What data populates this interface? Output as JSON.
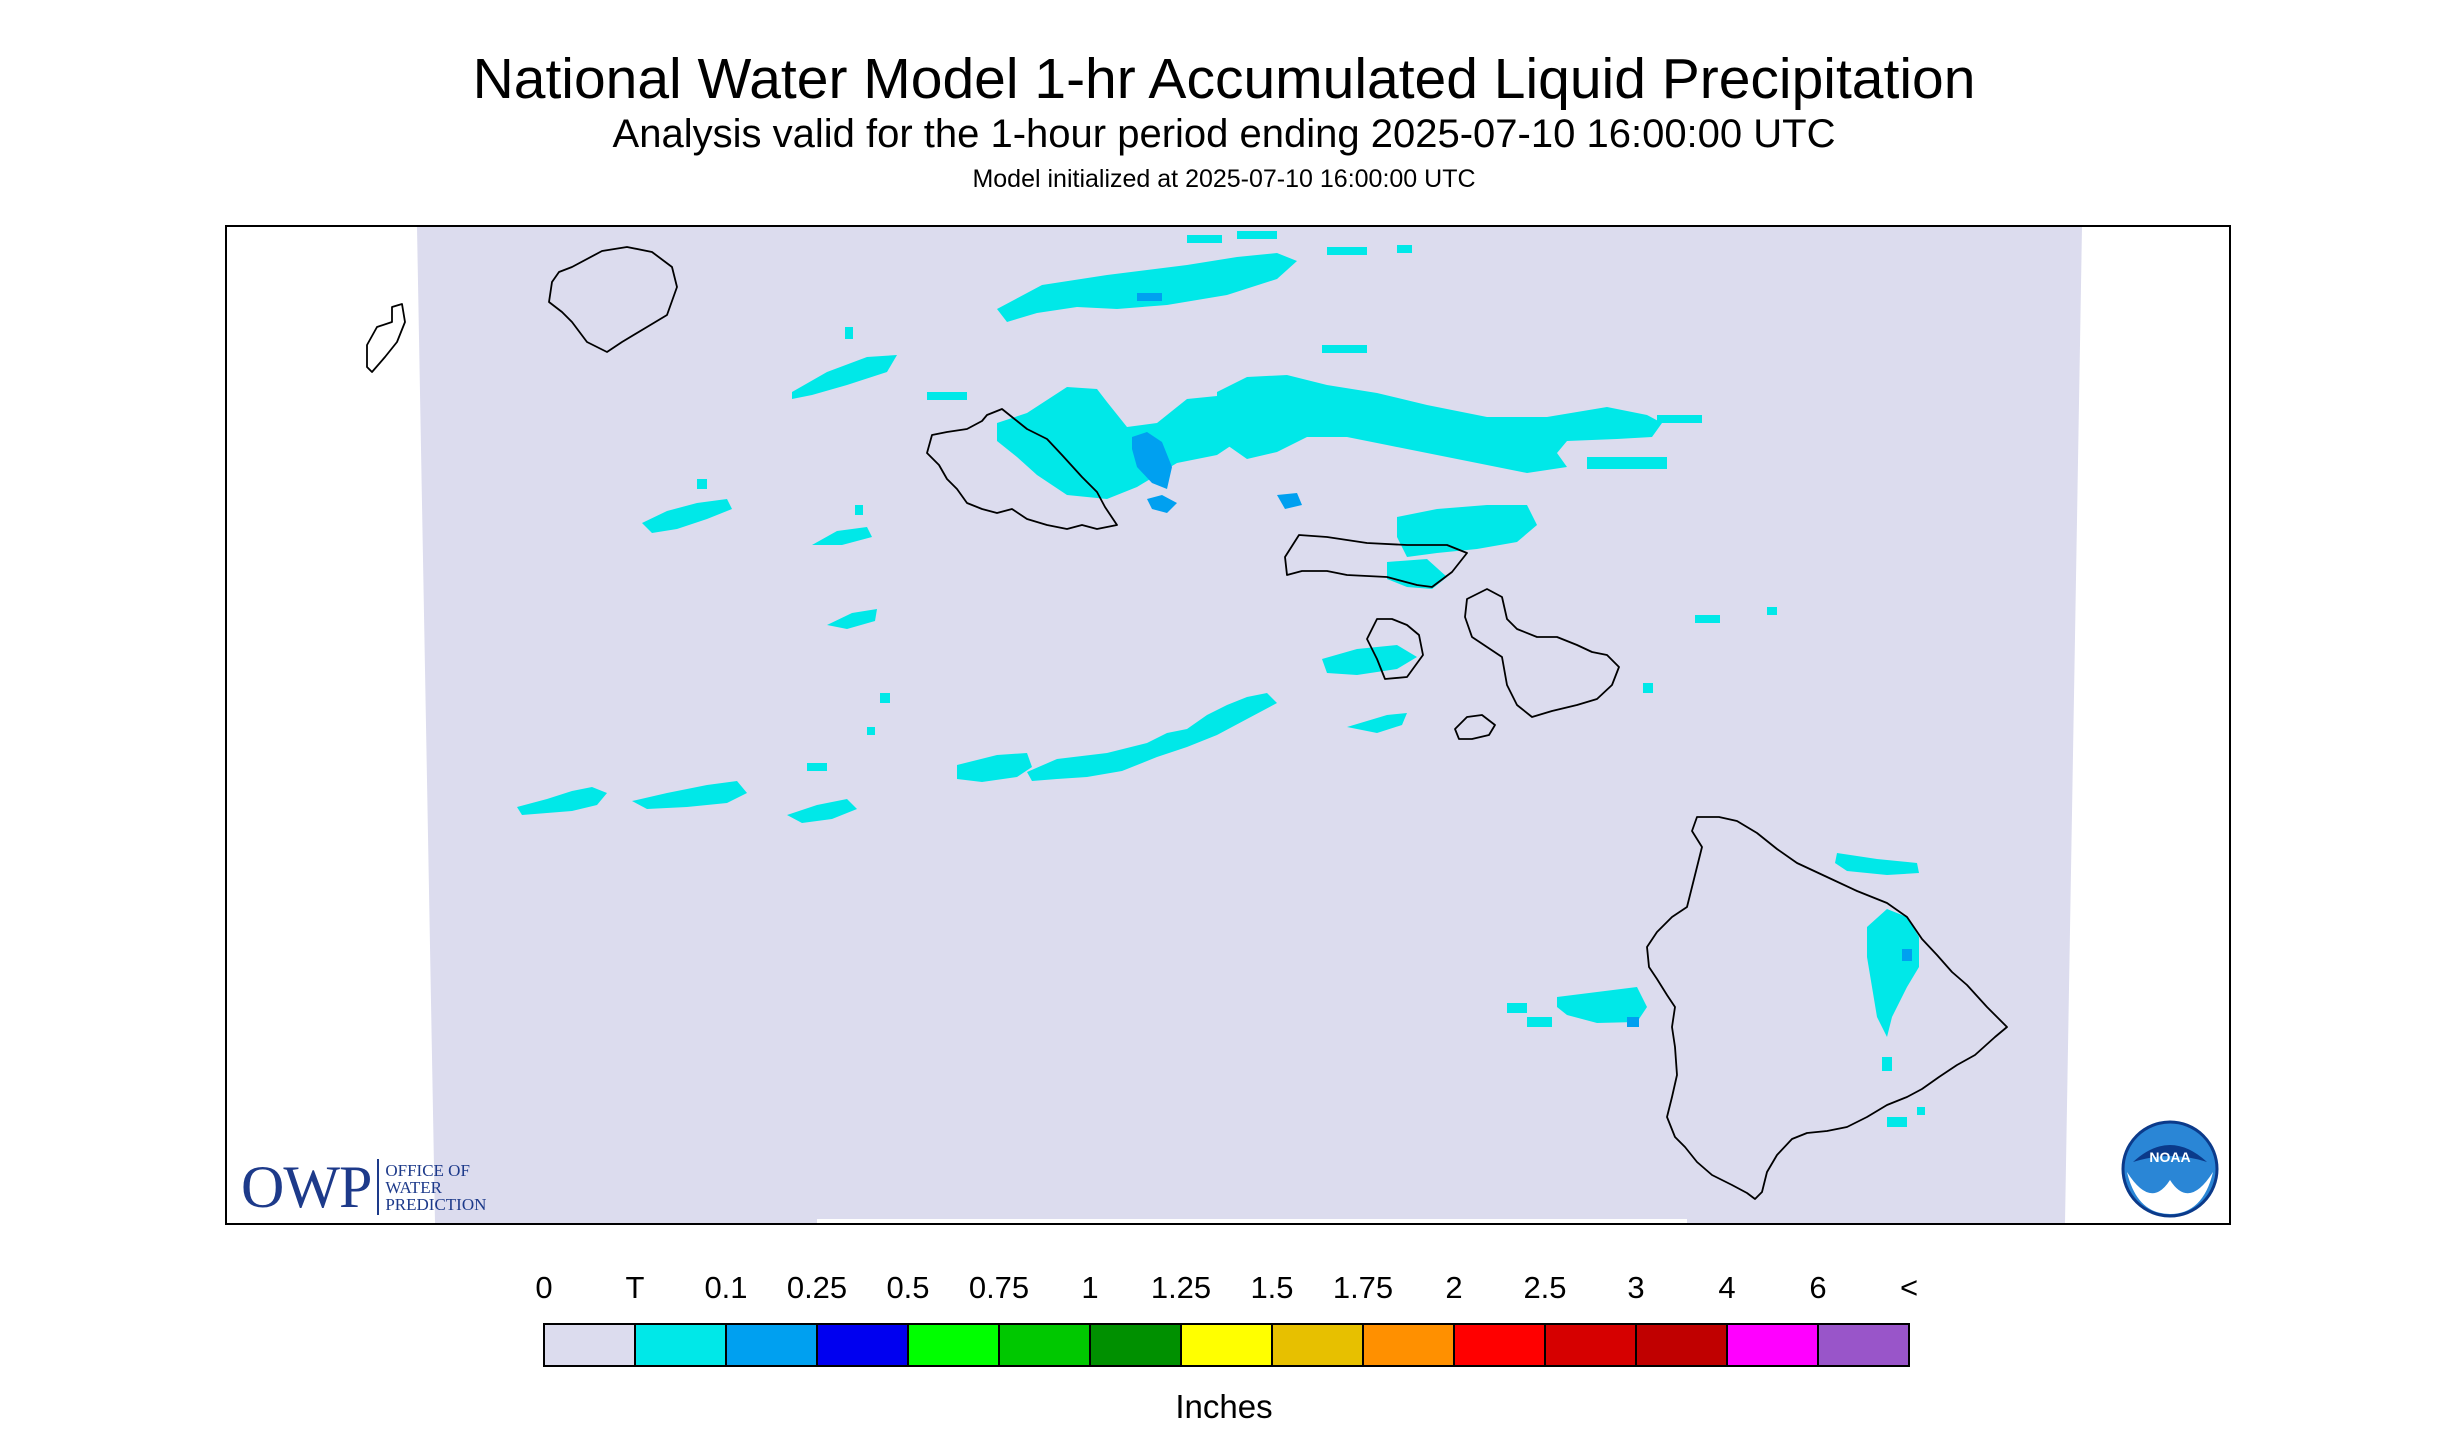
{
  "title": "National Water Model 1-hr Accumulated Liquid Precipitation",
  "subtitle": "Analysis valid for the 1-hour period ending 2025-07-10 16:00:00 UTC",
  "init_line": "Model initialized at 2025-07-10 16:00:00 UTC",
  "owp_logo": {
    "abbrev": "OWP",
    "line1": "OFFICE OF",
    "line2": "WATER",
    "line3": "PREDICTION"
  },
  "noaa_logo": {
    "text": "NOAA"
  },
  "legend": {
    "unit": "Inches",
    "labels": [
      "0",
      "T",
      "0.1",
      "0.25",
      "0.5",
      "0.75",
      "1",
      "1.25",
      "1.5",
      "1.75",
      "2",
      "2.5",
      "3",
      "4",
      "6",
      "<"
    ],
    "colors": [
      "#dcdcee",
      "#00e8e8",
      "#00a0f0",
      "#0000f0",
      "#00ff00",
      "#00c800",
      "#009000",
      "#ffff00",
      "#e7c000",
      "#ff9000",
      "#ff0000",
      "#d60000",
      "#c00000",
      "#ff00ff",
      "#9955c9"
    ]
  },
  "map": {
    "domain_color": "#dcdcee",
    "coast_color": "#000000",
    "islands": [
      "Niihau",
      "Kauai",
      "Oahu",
      "Molokai",
      "Lanai",
      "Maui",
      "Kahoolawe",
      "Hawaii"
    ]
  }
}
